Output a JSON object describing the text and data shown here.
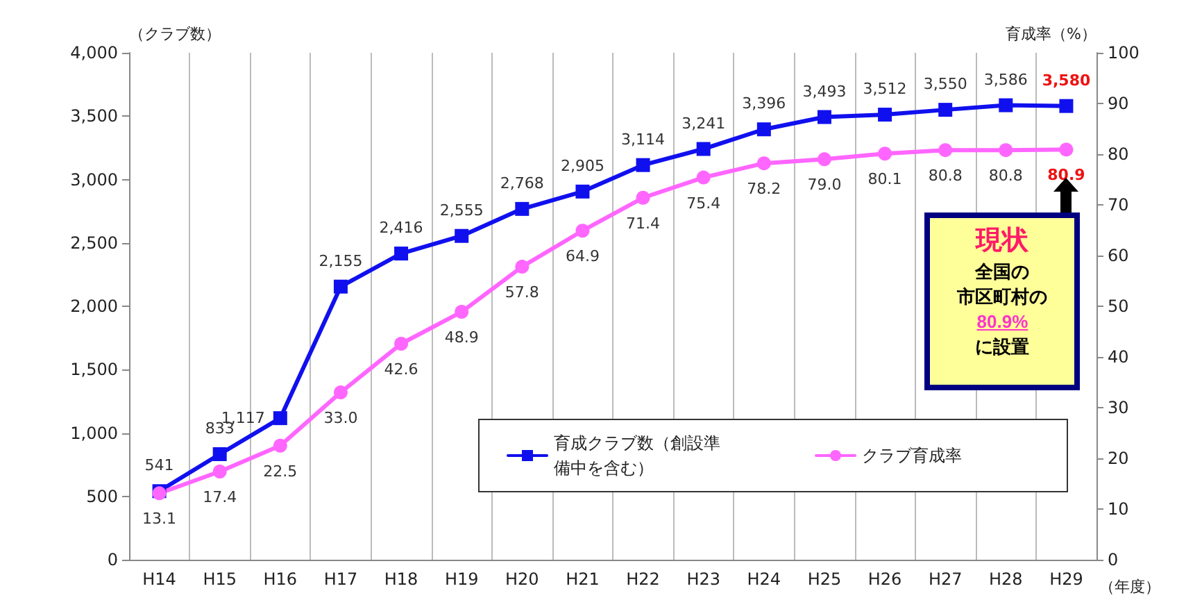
{
  "chart_data": {
    "type": "line",
    "xlabel": "（年度）",
    "ylabel": "（クラブ数）",
    "y2label": "育成率（%）",
    "categories": [
      "H14",
      "H15",
      "H16",
      "H17",
      "H18",
      "H19",
      "H20",
      "H21",
      "H22",
      "H23",
      "H24",
      "H25",
      "H26",
      "H27",
      "H28",
      "H29"
    ],
    "series": [
      {
        "name": "育成クラブ数（創設準備中を含む）",
        "color": "#1010ee",
        "marker": "square",
        "values": [
          541,
          833,
          1117,
          2155,
          2416,
          2555,
          2768,
          2905,
          3114,
          3241,
          3396,
          3493,
          3512,
          3550,
          3586,
          3580
        ],
        "value_labels": [
          "541",
          "833",
          "1,117",
          "2,155",
          "2,416",
          "2,555",
          "2,768",
          "2,905",
          "3,114",
          "3,241",
          "3,396",
          "3,493",
          "3,512",
          "3,550",
          "3,586",
          "3,580"
        ]
      },
      {
        "name": "クラブ育成率",
        "color": "#ff66ff",
        "marker": "circle",
        "axis": "y2",
        "values": [
          13.1,
          17.4,
          22.5,
          33.0,
          42.6,
          48.9,
          57.8,
          64.9,
          71.4,
          75.4,
          78.2,
          79.0,
          80.1,
          80.8,
          80.8,
          80.9
        ],
        "value_labels": [
          "13.1",
          "17.4",
          "22.5",
          "33.0",
          "42.6",
          "48.9",
          "57.8",
          "64.9",
          "71.4",
          "75.4",
          "78.2",
          "79.0",
          "80.1",
          "80.8",
          "80.8",
          "80.9"
        ]
      }
    ],
    "ylim": [
      0,
      4000
    ],
    "yticks": [
      {
        "value": 0,
        "label": "0"
      },
      {
        "value": 500,
        "label": "500"
      },
      {
        "value": 1000,
        "label": "1,000"
      },
      {
        "value": 1500,
        "label": "1,500"
      },
      {
        "value": 2000,
        "label": "2,000"
      },
      {
        "value": 2500,
        "label": "2,500"
      },
      {
        "value": 3000,
        "label": "3,000"
      },
      {
        "value": 3500,
        "label": "3,500"
      },
      {
        "value": 4000,
        "label": "4,000"
      }
    ],
    "y2lim": [
      0,
      100
    ],
    "y2ticks": [
      0,
      10,
      20,
      30,
      40,
      50,
      60,
      70,
      80,
      90,
      100
    ],
    "grid": "x",
    "legend": "bottom",
    "line_style": "solid",
    "annotations": [
      "現状",
      "全国の",
      "市区町村の",
      "80.9%",
      "に設置"
    ]
  }
}
